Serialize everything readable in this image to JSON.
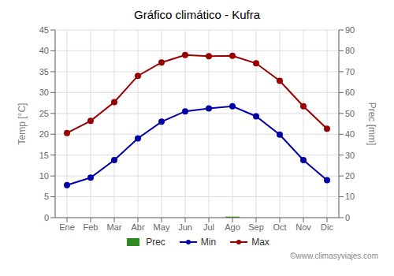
{
  "chart_data": {
    "type": "line",
    "title": "Gráfico climático - Kufra",
    "categories": [
      "Ene",
      "Feb",
      "Mar",
      "Abr",
      "May",
      "Jun",
      "Jul",
      "Ago",
      "Sep",
      "Oct",
      "Nov",
      "Dic"
    ],
    "series": [
      {
        "name": "Prec",
        "type": "bar",
        "axis": "y2",
        "color": "#2e8b20",
        "values": [
          0,
          0,
          0,
          0,
          0,
          0,
          0,
          0.5,
          0,
          0,
          0,
          0
        ]
      },
      {
        "name": "Min",
        "type": "line",
        "color": "#0000aa",
        "marker": "circle",
        "values": [
          7.8,
          9.6,
          13.8,
          19.0,
          23.0,
          25.5,
          26.2,
          26.7,
          24.3,
          19.9,
          13.8,
          9.0
        ]
      },
      {
        "name": "Max",
        "type": "line",
        "color": "#990000",
        "marker": "circle",
        "values": [
          20.3,
          23.2,
          27.7,
          34.0,
          37.2,
          39.0,
          38.7,
          38.8,
          37.0,
          32.8,
          26.7,
          21.3
        ]
      }
    ],
    "ylabel": "Temp [°C]",
    "y2label": "Prec [mm]",
    "ylim": [
      0,
      45
    ],
    "yticks": [
      0,
      5,
      10,
      15,
      20,
      25,
      30,
      35,
      40,
      45
    ],
    "y2lim": [
      0,
      90
    ],
    "y2ticks": [
      0,
      10,
      20,
      30,
      40,
      50,
      60,
      70,
      80,
      90
    ],
    "grid": true,
    "legend": "bottom",
    "annotations": [
      "©www.climasyviajes.com"
    ]
  }
}
